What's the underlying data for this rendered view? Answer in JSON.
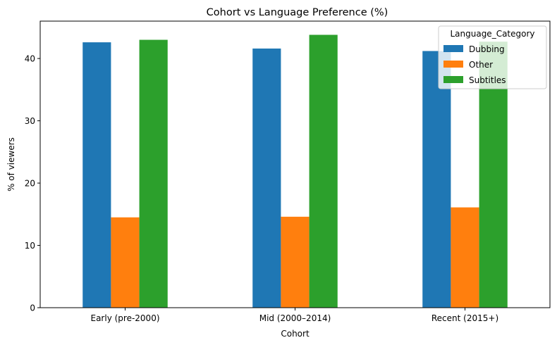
{
  "chart_data": {
    "type": "bar",
    "title": "Cohort vs Language Preference (%)",
    "xlabel": "Cohort",
    "ylabel": "% of viewers",
    "categories": [
      "Early (pre-2000)",
      "Mid (2000–2014)",
      "Recent (2015+)"
    ],
    "series": [
      {
        "name": "Dubbing",
        "color": "#1f77b4",
        "values": [
          42.6,
          41.6,
          41.2
        ]
      },
      {
        "name": "Other",
        "color": "#ff7f0e",
        "values": [
          14.5,
          14.6,
          16.1
        ]
      },
      {
        "name": "Subtitles",
        "color": "#2ca02c",
        "values": [
          43.0,
          43.8,
          42.7
        ]
      }
    ],
    "ylim": [
      0,
      46
    ],
    "yticks": [
      0,
      10,
      20,
      30,
      40
    ],
    "grid": false,
    "legend": {
      "title": "Language_Category",
      "position": "top-right"
    }
  }
}
